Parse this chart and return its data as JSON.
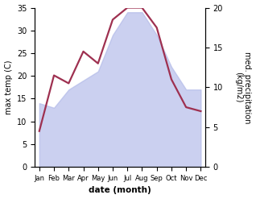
{
  "months": [
    "Jan",
    "Feb",
    "Mar",
    "Apr",
    "May",
    "Jun",
    "Jul",
    "Aug",
    "Sep",
    "Oct",
    "Nov",
    "Dec"
  ],
  "max_temp": [
    14,
    13,
    17,
    19,
    21,
    29,
    34,
    34,
    29,
    22,
    17,
    17
  ],
  "precipitation": [
    4.5,
    11.5,
    10.5,
    14.5,
    13,
    18.5,
    20,
    20,
    17.5,
    11,
    7.5,
    7
  ],
  "temp_ylim": [
    0,
    35
  ],
  "precip_ylim": [
    0,
    20
  ],
  "temp_yticks": [
    0,
    5,
    10,
    15,
    20,
    25,
    30,
    35
  ],
  "precip_yticks": [
    0,
    5,
    10,
    15,
    20
  ],
  "fill_color": "#b0b8e8",
  "fill_alpha": 0.65,
  "line_color": "#9e3050",
  "line_width": 1.6,
  "ylabel_left": "max temp (C)",
  "ylabel_right": "med. precipitation\n(kg/m2)",
  "xlabel": "date (month)",
  "bg_color": "#ffffff"
}
